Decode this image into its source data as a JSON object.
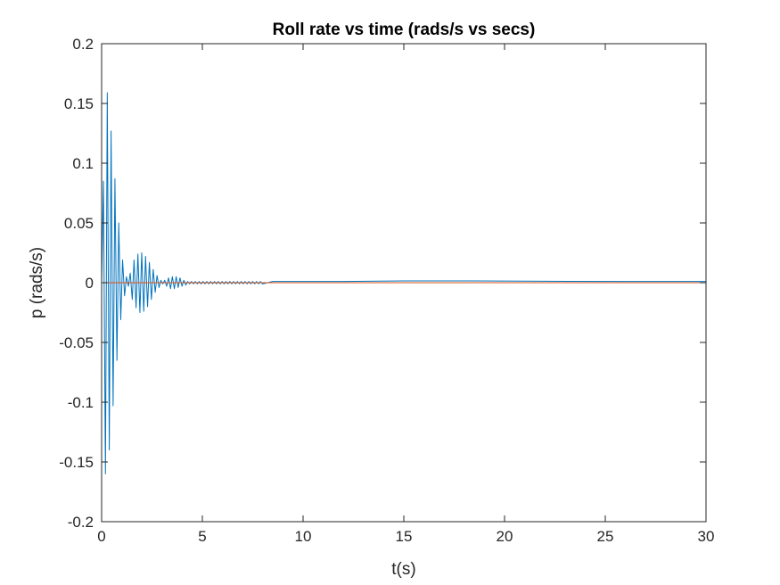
{
  "chart_data": {
    "type": "line",
    "title": "Roll rate vs time (rads/s vs secs)",
    "xlabel": "t(s)",
    "ylabel": "p (rads/s)",
    "xlim": [
      0,
      30
    ],
    "ylim": [
      -0.2,
      0.2
    ],
    "x_ticks": [
      0,
      5,
      10,
      15,
      20,
      25,
      30
    ],
    "x_tick_labels": [
      "0",
      "5",
      "10",
      "15",
      "20",
      "25",
      "30"
    ],
    "y_ticks": [
      -0.2,
      -0.15,
      -0.1,
      -0.05,
      0,
      0.05,
      0.1,
      0.15,
      0.2
    ],
    "y_tick_labels": [
      "-0.2",
      "-0.15",
      "-0.1",
      "-0.05",
      "0",
      "0.05",
      "0.1",
      "0.15",
      "0.2"
    ],
    "grid": false,
    "series": [
      {
        "color": "#0072BD",
        "x": [
          0,
          0.09,
          0.19,
          0.28,
          0.38,
          0.47,
          0.57,
          0.66,
          0.76,
          0.85,
          0.95,
          1.04,
          1.14,
          1.23,
          1.33,
          1.42,
          1.52,
          1.61,
          1.71,
          1.8,
          1.9,
          1.99,
          2.09,
          2.18,
          2.28,
          2.37,
          2.47,
          2.56,
          2.66,
          2.75,
          2.85,
          2.94,
          3.04,
          3.13,
          3.23,
          3.32,
          3.42,
          3.51,
          3.61,
          3.7,
          3.8,
          3.89,
          3.99,
          4.08,
          4.18,
          4.27,
          4.37,
          4.46,
          4.56,
          4.65,
          4.75,
          4.84,
          4.94,
          5.03,
          5.13,
          5.22,
          5.32,
          5.41,
          5.51,
          5.6,
          5.7,
          5.79,
          5.89,
          5.98,
          6.08,
          6.17,
          6.27,
          6.36,
          6.46,
          6.55,
          6.65,
          6.74,
          6.84,
          6.93,
          7.03,
          7.12,
          7.22,
          7.31,
          7.41,
          7.5,
          7.6,
          7.69,
          7.79,
          7.88,
          7.98,
          8.5,
          9,
          10,
          12,
          15,
          18.5,
          22,
          26,
          30
        ],
        "y": [
          0,
          0.085,
          -0.16,
          0.159,
          -0.14,
          0.127,
          -0.103,
          0.087,
          -0.065,
          0.05,
          -0.031,
          0.019,
          -0.011,
          0.005,
          -0.003,
          0.008,
          -0.014,
          0.019,
          -0.021,
          0.024,
          -0.025,
          0.025,
          -0.024,
          0.022,
          -0.02,
          0.017,
          -0.014,
          0.011,
          -0.008,
          0.006,
          -0.004,
          0.002,
          -0.001,
          0.002,
          -0.003,
          0.004,
          -0.005,
          0.005,
          -0.005,
          0.005,
          -0.004,
          0.004,
          -0.003,
          0.002,
          -0.002,
          0.001,
          -0.001,
          0.001,
          -0.001,
          0.001,
          -0.001,
          0.001,
          -0.001,
          0.001,
          -0.001,
          0.001,
          -0.001,
          0.001,
          -0.001,
          0.001,
          -0.001,
          0.001,
          -0.001,
          0.001,
          -0.001,
          0.001,
          -0.001,
          0.001,
          -0.001,
          0.001,
          -0.001,
          0.001,
          -0.001,
          0.001,
          -0.001,
          0.001,
          -0.001,
          0.001,
          -0.001,
          0.001,
          -0.001,
          0.001,
          -0.001,
          0.001,
          -0.001,
          0.001,
          0.001,
          0.001,
          0.001,
          0.0015,
          0.0015,
          0.0012,
          0.001,
          0.001
        ]
      },
      {
        "color": "#D95319",
        "x": [
          0,
          30
        ],
        "y": [
          0,
          0
        ]
      }
    ]
  }
}
